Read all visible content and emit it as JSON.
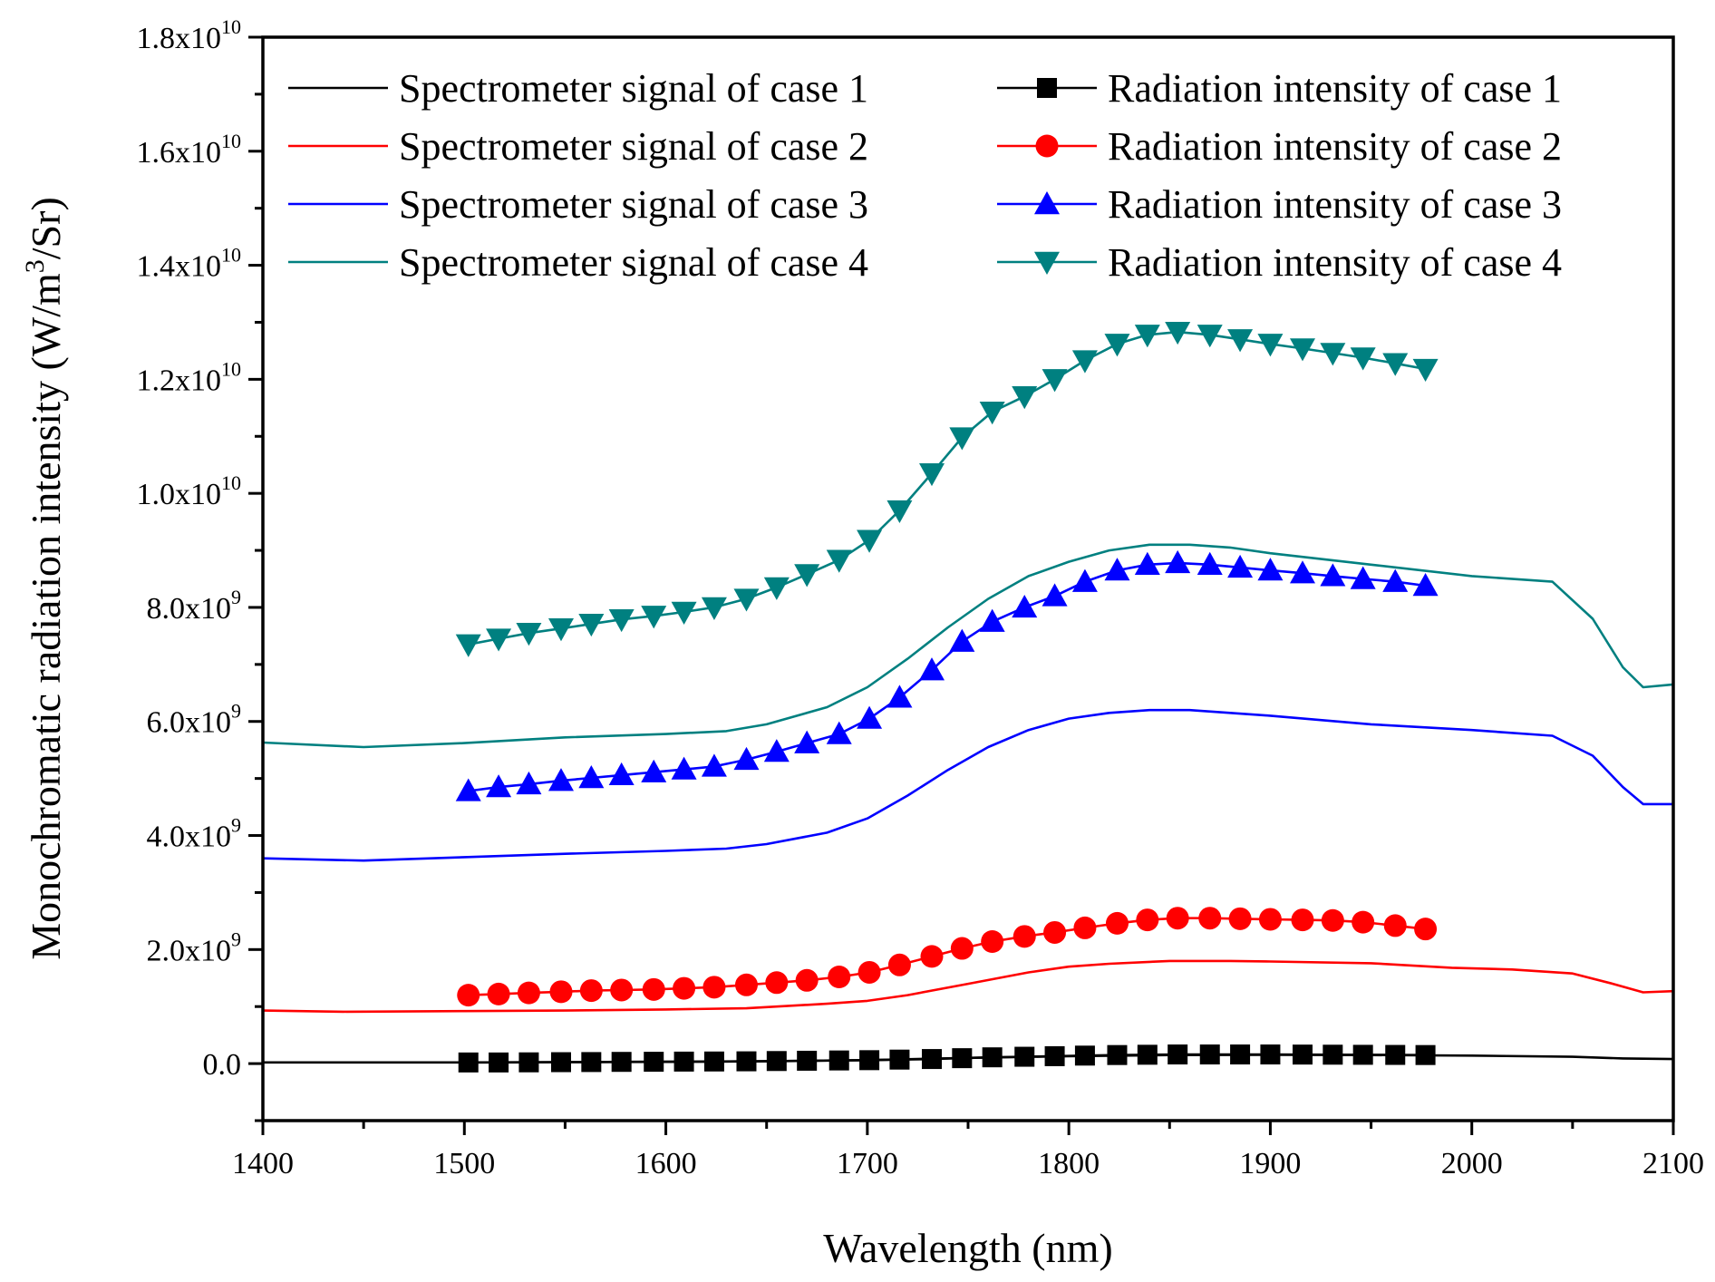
{
  "chart_data": {
    "type": "line",
    "title": "",
    "xlabel": "Wavelength (nm)",
    "ylabel": {
      "main": "Monochromatic radiation intensity (W/m",
      "sup": "3",
      "tail": "/Sr)"
    },
    "xlim": [
      1400,
      2100
    ],
    "ylim": [
      -1000000000,
      18000000000
    ],
    "x_ticks": [
      {
        "value": 1400,
        "label": "1400"
      },
      {
        "value": 1500,
        "label": "1500"
      },
      {
        "value": 1600,
        "label": "1600"
      },
      {
        "value": 1700,
        "label": "1700"
      },
      {
        "value": 1800,
        "label": "1800"
      },
      {
        "value": 1900,
        "label": "1900"
      },
      {
        "value": 2000,
        "label": "2000"
      },
      {
        "value": 2100,
        "label": "2100"
      }
    ],
    "y_ticks": [
      {
        "value": 0,
        "label": "0.0",
        "exp": ""
      },
      {
        "value": 2000000000,
        "label": "2.0x10",
        "exp": "9"
      },
      {
        "value": 4000000000,
        "label": "4.0x10",
        "exp": "9"
      },
      {
        "value": 6000000000,
        "label": "6.0x10",
        "exp": "9"
      },
      {
        "value": 8000000000,
        "label": "8.0x10",
        "exp": "9"
      },
      {
        "value": 10000000000,
        "label": "1.0x10",
        "exp": "10"
      },
      {
        "value": 12000000000,
        "label": "1.2x10",
        "exp": "10"
      },
      {
        "value": 14000000000,
        "label": "1.4x10",
        "exp": "10"
      },
      {
        "value": 16000000000,
        "label": "1.6x10",
        "exp": "10"
      },
      {
        "value": 18000000000,
        "label": "1.8x10",
        "exp": "10"
      }
    ],
    "grid": false,
    "legend_position": "top",
    "series": [
      {
        "name": "Spectrometer signal of case 1",
        "color": "#000000",
        "marker": "none",
        "x": [
          1400,
          1450,
          1500,
          1550,
          1600,
          1650,
          1700,
          1750,
          1800,
          1850,
          1900,
          1950,
          2000,
          2050,
          2075,
          2100
        ],
        "y": [
          20000000,
          20000000,
          20000000,
          25000000,
          30000000,
          40000000,
          60000000,
          100000000,
          130000000,
          150000000,
          155000000,
          150000000,
          140000000,
          120000000,
          90000000,
          80000000
        ]
      },
      {
        "name": "Spectrometer signal of case 2",
        "color": "#ff0000",
        "marker": "none",
        "x": [
          1400,
          1440,
          1500,
          1550,
          1600,
          1640,
          1680,
          1700,
          1720,
          1750,
          1780,
          1800,
          1820,
          1850,
          1880,
          1900,
          1950,
          1990,
          2020,
          2050,
          2070,
          2085,
          2100
        ],
        "y": [
          930000000,
          910000000,
          920000000,
          930000000,
          950000000,
          970000000,
          1050000000,
          1100000000,
          1200000000,
          1400000000,
          1600000000,
          1700000000,
          1750000000,
          1800000000,
          1800000000,
          1790000000,
          1760000000,
          1680000000,
          1650000000,
          1580000000,
          1400000000,
          1250000000,
          1270000000
        ]
      },
      {
        "name": "Spectrometer signal of case 3",
        "color": "#0000ff",
        "marker": "none",
        "x": [
          1400,
          1450,
          1500,
          1550,
          1600,
          1630,
          1650,
          1680,
          1700,
          1720,
          1740,
          1760,
          1780,
          1800,
          1820,
          1840,
          1860,
          1880,
          1900,
          1950,
          2000,
          2040,
          2060,
          2075,
          2085,
          2100
        ],
        "y": [
          3600000000,
          3560000000,
          3620000000,
          3680000000,
          3730000000,
          3770000000,
          3850000000,
          4050000000,
          4300000000,
          4700000000,
          5150000000,
          5550000000,
          5850000000,
          6050000000,
          6150000000,
          6200000000,
          6200000000,
          6150000000,
          6100000000,
          5950000000,
          5850000000,
          5750000000,
          5400000000,
          4850000000,
          4550000000,
          4550000000
        ]
      },
      {
        "name": "Spectrometer signal of case 4",
        "color": "#008080",
        "marker": "none",
        "x": [
          1400,
          1450,
          1500,
          1550,
          1600,
          1630,
          1650,
          1680,
          1700,
          1720,
          1740,
          1760,
          1780,
          1800,
          1820,
          1840,
          1860,
          1880,
          1900,
          1950,
          2000,
          2040,
          2060,
          2075,
          2085,
          2100
        ],
        "y": [
          5630000000,
          5550000000,
          5620000000,
          5720000000,
          5780000000,
          5830000000,
          5950000000,
          6250000000,
          6600000000,
          7100000000,
          7650000000,
          8150000000,
          8550000000,
          8800000000,
          9000000000,
          9100000000,
          9100000000,
          9050000000,
          8950000000,
          8750000000,
          8550000000,
          8450000000,
          7800000000,
          6950000000,
          6600000000,
          6650000000
        ]
      },
      {
        "name": "Radiation intensity of case 1",
        "color": "#000000",
        "marker": "square",
        "x": [
          1502,
          1517,
          1532,
          1548,
          1563,
          1578,
          1594,
          1609,
          1624,
          1640,
          1655,
          1670,
          1686,
          1701,
          1716,
          1732,
          1747,
          1762,
          1778,
          1793,
          1808,
          1824,
          1839,
          1854,
          1870,
          1885,
          1900,
          1916,
          1931,
          1946,
          1962,
          1977
        ],
        "y": [
          20000000,
          20000000,
          22000000,
          25000000,
          27000000,
          30000000,
          32000000,
          35000000,
          37000000,
          40000000,
          45000000,
          50000000,
          55000000,
          60000000,
          70000000,
          80000000,
          95000000,
          110000000,
          120000000,
          130000000,
          140000000,
          150000000,
          155000000,
          160000000,
          160000000,
          160000000,
          160000000,
          158000000,
          156000000,
          154000000,
          152000000,
          150000000
        ]
      },
      {
        "name": "Radiation intensity of case 2",
        "color": "#ff0000",
        "marker": "circle",
        "x": [
          1502,
          1517,
          1532,
          1548,
          1563,
          1578,
          1594,
          1609,
          1624,
          1640,
          1655,
          1670,
          1686,
          1701,
          1716,
          1732,
          1747,
          1762,
          1778,
          1793,
          1808,
          1824,
          1839,
          1854,
          1870,
          1885,
          1900,
          1916,
          1931,
          1946,
          1962,
          1977
        ],
        "y": [
          1200000000,
          1220000000,
          1240000000,
          1260000000,
          1280000000,
          1290000000,
          1300000000,
          1320000000,
          1340000000,
          1380000000,
          1420000000,
          1460000000,
          1520000000,
          1600000000,
          1730000000,
          1880000000,
          2020000000,
          2140000000,
          2230000000,
          2300000000,
          2380000000,
          2460000000,
          2520000000,
          2550000000,
          2550000000,
          2540000000,
          2530000000,
          2520000000,
          2510000000,
          2480000000,
          2420000000,
          2360000000
        ]
      },
      {
        "name": "Radiation intensity of case 3",
        "color": "#0000ff",
        "marker": "triangle-up",
        "x": [
          1502,
          1517,
          1532,
          1548,
          1563,
          1578,
          1594,
          1609,
          1624,
          1640,
          1655,
          1670,
          1686,
          1701,
          1716,
          1732,
          1747,
          1762,
          1778,
          1793,
          1808,
          1824,
          1839,
          1854,
          1870,
          1885,
          1900,
          1916,
          1931,
          1946,
          1962,
          1977
        ],
        "y": [
          4780000000,
          4850000000,
          4900000000,
          4960000000,
          5010000000,
          5060000000,
          5110000000,
          5160000000,
          5210000000,
          5330000000,
          5470000000,
          5620000000,
          5780000000,
          6050000000,
          6420000000,
          6900000000,
          7400000000,
          7750000000,
          8000000000,
          8200000000,
          8450000000,
          8650000000,
          8750000000,
          8780000000,
          8750000000,
          8700000000,
          8650000000,
          8600000000,
          8550000000,
          8500000000,
          8450000000,
          8380000000
        ]
      },
      {
        "name": "Radiation intensity of case 4",
        "color": "#008080",
        "marker": "triangle-down",
        "x": [
          1502,
          1517,
          1532,
          1548,
          1563,
          1578,
          1594,
          1609,
          1624,
          1640,
          1655,
          1670,
          1686,
          1701,
          1716,
          1732,
          1747,
          1762,
          1778,
          1793,
          1808,
          1824,
          1839,
          1854,
          1870,
          1885,
          1900,
          1916,
          1931,
          1946,
          1962,
          1977
        ],
        "y": [
          7350000000,
          7450000000,
          7550000000,
          7630000000,
          7710000000,
          7790000000,
          7850000000,
          7920000000,
          8000000000,
          8150000000,
          8350000000,
          8580000000,
          8830000000,
          9180000000,
          9700000000,
          10350000000,
          10980000000,
          11430000000,
          11700000000,
          12000000000,
          12330000000,
          12620000000,
          12780000000,
          12830000000,
          12780000000,
          12700000000,
          12620000000,
          12540000000,
          12460000000,
          12380000000,
          12280000000,
          12180000000
        ]
      }
    ]
  }
}
